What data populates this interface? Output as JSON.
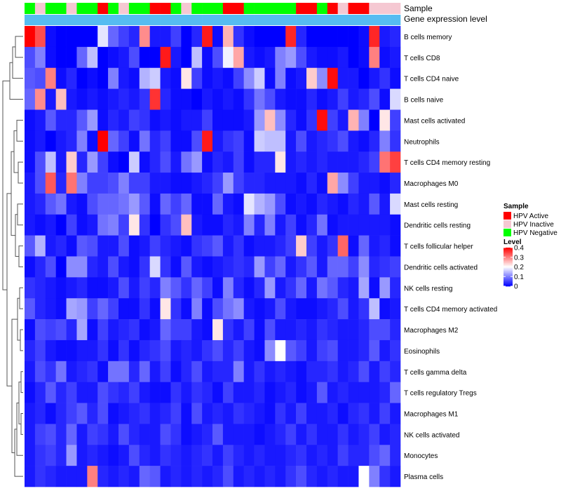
{
  "chart_data": {
    "type": "heatmap",
    "title": "",
    "annotation_tracks": [
      "Sample",
      "Gene expression level"
    ],
    "cell_types": [
      "B cells memory",
      "T cells CD8",
      "T cells CD4 naive",
      "B cells naive",
      "Mast cells activated",
      "Neutrophils",
      "T cells CD4 memory resting",
      "Macrophages M0",
      "Mast cells resting",
      "Dendritic cells resting",
      "T cells follicular helper",
      "Dendritic cells activated",
      "NK cells resting",
      "T cells CD4 memory activated",
      "Macrophages M2",
      "Eosinophils",
      "T cells gamma delta",
      "T cells regulatory  Tregs",
      "Macrophages M1",
      "NK cells activated",
      "Monocytes",
      "Plasma cells"
    ],
    "sample_groups": [
      "HPV Negative",
      "HPV Inactive",
      "HPV Negative",
      "HPV Negative",
      "HPV Inactive",
      "HPV Negative",
      "HPV Negative",
      "HPV Active",
      "HPV Negative",
      "HPV Inactive",
      "HPV Negative",
      "HPV Negative",
      "HPV Active",
      "HPV Active",
      "HPV Negative",
      "HPV Inactive",
      "HPV Negative",
      "HPV Negative",
      "HPV Negative",
      "HPV Active",
      "HPV Active",
      "HPV Negative",
      "HPV Negative",
      "HPV Negative",
      "HPV Negative",
      "HPV Negative",
      "HPV Active",
      "HPV Active",
      "HPV Negative",
      "HPV Active",
      "HPV Inactive",
      "HPV Active",
      "HPV Active",
      "HPV Inactive",
      "HPV Inactive",
      "HPV Inactive"
    ],
    "gene_expression_level": [
      0.93,
      0.93,
      0.93,
      0.93,
      0.93,
      0.93,
      0.93,
      0.93,
      0.93,
      0.93,
      0.93,
      0.93,
      0.93,
      0.93,
      0.93,
      0.93,
      0.93,
      0.93,
      0.93,
      0.93,
      0.93,
      0.93,
      0.93,
      0.93,
      0.93,
      0.93,
      0.93,
      0.93,
      0.93,
      0.93,
      0.93,
      0.93,
      0.93,
      0.93,
      0.93,
      0.93
    ],
    "values": [
      [
        0.4,
        0.34,
        0.01,
        0,
        0,
        0,
        0,
        0.18,
        0.08,
        0.05,
        0.03,
        0.29,
        0.02,
        0.02,
        0.05,
        0,
        0.03,
        0.38,
        0.01,
        0.26,
        0.04,
        0.01,
        0,
        0,
        0,
        0.37,
        0.03,
        0,
        0,
        0,
        0,
        0,
        0.01,
        0.37,
        0.02,
        0.03
      ],
      [
        0.06,
        0.1,
        0.01,
        0,
        0,
        0.08,
        0.15,
        0,
        0.01,
        0.02,
        0.06,
        0,
        0,
        0.38,
        0.02,
        0,
        0.15,
        0.01,
        0.06,
        0.19,
        0.27,
        0.02,
        0.01,
        0.02,
        0.1,
        0.12,
        0.06,
        0.02,
        0.01,
        0.01,
        0.02,
        0,
        0.01,
        0.3,
        0.01,
        0.02
      ],
      [
        0.07,
        0.06,
        0.3,
        0.01,
        0.03,
        0,
        0.01,
        0,
        0.1,
        0.02,
        0.01,
        0.14,
        0.16,
        0.02,
        0.01,
        0.22,
        0.05,
        0.01,
        0.02,
        0.01,
        0.05,
        0.11,
        0.16,
        0.01,
        0.1,
        0.01,
        0.02,
        0.24,
        0.11,
        0.39,
        0.02,
        0.02,
        0,
        0.02,
        0.04,
        0.01
      ],
      [
        0.08,
        0.29,
        0.02,
        0.25,
        0.02,
        0.01,
        0.02,
        0.01,
        0.02,
        0.03,
        0.02,
        0.04,
        0.36,
        0.03,
        0.01,
        0.01,
        0,
        0.02,
        0.01,
        0.02,
        0.01,
        0.04,
        0.09,
        0.06,
        0.02,
        0.01,
        0.01,
        0.03,
        0.01,
        0.02,
        0.05,
        0.02,
        0.03,
        0.06,
        0.01,
        0.17
      ],
      [
        0.01,
        0.02,
        0.07,
        0.03,
        0.03,
        0.07,
        0.12,
        0.01,
        0.03,
        0.02,
        0.05,
        0.04,
        0.01,
        0.02,
        0.01,
        0.02,
        0.02,
        0.05,
        0.01,
        0.01,
        0.01,
        0.02,
        0.12,
        0.25,
        0.11,
        0.03,
        0.01,
        0.04,
        0.39,
        0.05,
        0.02,
        0.26,
        0.1,
        0,
        0.22,
        0.05
      ],
      [
        0.01,
        0.02,
        0,
        0.02,
        0.03,
        0.1,
        0.01,
        0.4,
        0.08,
        0.05,
        0.01,
        0.09,
        0.03,
        0.05,
        0.01,
        0.01,
        0.06,
        0.38,
        0.02,
        0.04,
        0.05,
        0.01,
        0.16,
        0.15,
        0.15,
        0.02,
        0.06,
        0.02,
        0.03,
        0.04,
        0.06,
        0.02,
        0.01,
        0.03,
        0.1,
        0.04
      ],
      [
        0.01,
        0.06,
        0.15,
        0.02,
        0.24,
        0.03,
        0.12,
        0.05,
        0.01,
        0,
        0.16,
        0.01,
        0.03,
        0.06,
        0.02,
        0.09,
        0.12,
        0.01,
        0.03,
        0.02,
        0.05,
        0.01,
        0.03,
        0.03,
        0.22,
        0.02,
        0.03,
        0.02,
        0.03,
        0.02,
        0.02,
        0.02,
        0.03,
        0.05,
        0.31,
        0.35
      ],
      [
        0.02,
        0.06,
        0.33,
        0.03,
        0.31,
        0.1,
        0.05,
        0.05,
        0.06,
        0.1,
        0.05,
        0.05,
        0.02,
        0.02,
        0.01,
        0.01,
        0.02,
        0.03,
        0.05,
        0.12,
        0.05,
        0.03,
        0.03,
        0.02,
        0.02,
        0.02,
        0.01,
        0.03,
        0.01,
        0.27,
        0.11,
        0.05,
        0.02,
        0.02,
        0.01,
        0.03
      ],
      [
        0.02,
        0.03,
        0.07,
        0.09,
        0.02,
        0.01,
        0.06,
        0.08,
        0.08,
        0.09,
        0.12,
        0.07,
        0.01,
        0.08,
        0.05,
        0.08,
        0.01,
        0.01,
        0.08,
        0.02,
        0.01,
        0.18,
        0.14,
        0.12,
        0.06,
        0.01,
        0.02,
        0.01,
        0.03,
        0.02,
        0.01,
        0.03,
        0.02,
        0.07,
        0.02,
        0.17
      ],
      [
        0.02,
        0.01,
        0.02,
        0,
        0.05,
        0.01,
        0.02,
        0.09,
        0.1,
        0.05,
        0.22,
        0.04,
        0,
        0.04,
        0.06,
        0.25,
        0.02,
        0.01,
        0.01,
        0.03,
        0.02,
        0.1,
        0.03,
        0.1,
        0.02,
        0.05,
        0.01,
        0.03,
        0.09,
        0.01,
        0.02,
        0.02,
        0.02,
        0.02,
        0.02,
        0.01
      ],
      [
        0.07,
        0.14,
        0.02,
        0.03,
        0.01,
        0.07,
        0.06,
        0.02,
        0.02,
        0.06,
        0.01,
        0.02,
        0.05,
        0.03,
        0.02,
        0.01,
        0.04,
        0.05,
        0.07,
        0.02,
        0.04,
        0.01,
        0.02,
        0.02,
        0.03,
        0.05,
        0.24,
        0.05,
        0.02,
        0.04,
        0.32,
        0.01,
        0.08,
        0.02,
        0.03,
        0.01
      ],
      [
        0.01,
        0.03,
        0.06,
        0,
        0.11,
        0.11,
        0.03,
        0.02,
        0.06,
        0.02,
        0.01,
        0.04,
        0.17,
        0.04,
        0.01,
        0.07,
        0.02,
        0.01,
        0.02,
        0.03,
        0.04,
        0.03,
        0.12,
        0.05,
        0.08,
        0.02,
        0.04,
        0.07,
        0.02,
        0.08,
        0.08,
        0.05,
        0.11,
        0.03,
        0.04,
        0.05
      ],
      [
        0.04,
        0.03,
        0.02,
        0.01,
        0.02,
        0.03,
        0.01,
        0.01,
        0.02,
        0.06,
        0.02,
        0.05,
        0.03,
        0.1,
        0.07,
        0.04,
        0.08,
        0.05,
        0.01,
        0.1,
        0.03,
        0.01,
        0.03,
        0.12,
        0.02,
        0.04,
        0.08,
        0.02,
        0.09,
        0.07,
        0.03,
        0.02,
        0.13,
        0.01,
        0.12,
        0.03
      ],
      [
        0.07,
        0.03,
        0.02,
        0.01,
        0.13,
        0.12,
        0.05,
        0.08,
        0.05,
        0.01,
        0.01,
        0.04,
        0.01,
        0.22,
        0.04,
        0.01,
        0.1,
        0.01,
        0.06,
        0.09,
        0.11,
        0.02,
        0.01,
        0.02,
        0.06,
        0.02,
        0.01,
        0.01,
        0.02,
        0.03,
        0.06,
        0.02,
        0.04,
        0.15,
        0.01,
        0.02
      ],
      [
        0.01,
        0.06,
        0.05,
        0.06,
        0.03,
        0.13,
        0.01,
        0.05,
        0.02,
        0.03,
        0.04,
        0.01,
        0.02,
        0.08,
        0.05,
        0.05,
        0.02,
        0.01,
        0.22,
        0.04,
        0.02,
        0.05,
        0.01,
        0.06,
        0.02,
        0.02,
        0.03,
        0.02,
        0.04,
        0.03,
        0.02,
        0.02,
        0.03,
        0.06,
        0.06,
        0.03
      ],
      [
        0.03,
        0.05,
        0.02,
        0.01,
        0.01,
        0.02,
        0.02,
        0.04,
        0.01,
        0.04,
        0.01,
        0.03,
        0.04,
        0.06,
        0.02,
        0.03,
        0.02,
        0.04,
        0.06,
        0.03,
        0.05,
        0.02,
        0.01,
        0.11,
        0.2,
        0.07,
        0.05,
        0.02,
        0.05,
        0.06,
        0.02,
        0.02,
        0.03,
        0.07,
        0.02,
        0.04
      ],
      [
        0.02,
        0.06,
        0.04,
        0.09,
        0.02,
        0.03,
        0.04,
        0.01,
        0.09,
        0.09,
        0.03,
        0.08,
        0.02,
        0.05,
        0.01,
        0.03,
        0.06,
        0.02,
        0.03,
        0.03,
        0.1,
        0.02,
        0.04,
        0.02,
        0.03,
        0.02,
        0.01,
        0.03,
        0.03,
        0.04,
        0.02,
        0.03,
        0.06,
        0.02,
        0.05,
        0.03
      ],
      [
        0.01,
        0.03,
        0.07,
        0.03,
        0.05,
        0.02,
        0.02,
        0.06,
        0.04,
        0.03,
        0.05,
        0.02,
        0.01,
        0.01,
        0.04,
        0.02,
        0.04,
        0.03,
        0.01,
        0.05,
        0.02,
        0.02,
        0.03,
        0.01,
        0.02,
        0.03,
        0.01,
        0.02,
        0.07,
        0.02,
        0.03,
        0.02,
        0.02,
        0.02,
        0.03,
        0.08
      ],
      [
        0.02,
        0.03,
        0.01,
        0.03,
        0.05,
        0.07,
        0.03,
        0.06,
        0.01,
        0.02,
        0.03,
        0.04,
        0.02,
        0.03,
        0.05,
        0.01,
        0.06,
        0.02,
        0.03,
        0.02,
        0.04,
        0.03,
        0.02,
        0.01,
        0.04,
        0.02,
        0.05,
        0.02,
        0.02,
        0.03,
        0.01,
        0.03,
        0.04,
        0.02,
        0.05,
        0.02
      ],
      [
        0.02,
        0.05,
        0.06,
        0.03,
        0.08,
        0.02,
        0.05,
        0.04,
        0.02,
        0.06,
        0.03,
        0.02,
        0.02,
        0.06,
        0.04,
        0.01,
        0.02,
        0.03,
        0.07,
        0.02,
        0.02,
        0.02,
        0.01,
        0.02,
        0.03,
        0.05,
        0.02,
        0.04,
        0.02,
        0.02,
        0.04,
        0.02,
        0.03,
        0.05,
        0.02,
        0.03
      ],
      [
        0.02,
        0.04,
        0.05,
        0.03,
        0.12,
        0.02,
        0.03,
        0.02,
        0.01,
        0.02,
        0.06,
        0.03,
        0.02,
        0.04,
        0.03,
        0.02,
        0.03,
        0.04,
        0.02,
        0.05,
        0.03,
        0.02,
        0.03,
        0.02,
        0.02,
        0.03,
        0.04,
        0.02,
        0.03,
        0.02,
        0.05,
        0.03,
        0.03,
        0.06,
        0.08,
        0.03
      ],
      [
        0.02,
        0.04,
        0.03,
        0.02,
        0.02,
        0.02,
        0.3,
        0.03,
        0.02,
        0.03,
        0.02,
        0.08,
        0.07,
        0.02,
        0.03,
        0.02,
        0.03,
        0.02,
        0.03,
        0.06,
        0.02,
        0.03,
        0.02,
        0.03,
        0.02,
        0.04,
        0.06,
        0.03,
        0.02,
        0.03,
        0.02,
        0.02,
        0.2,
        0.1,
        0.04,
        0.02
      ]
    ],
    "sample_legend": {
      "title": "Sample",
      "entries": [
        {
          "label": "HPV Active",
          "color": "#ff0000"
        },
        {
          "label": "HPV Inactive",
          "color": "#f5c8d2"
        },
        {
          "label": "HPV Negative",
          "color": "#00ff00"
        }
      ]
    },
    "level_legend": {
      "title": "Level",
      "ticks": [
        0.4,
        0.3,
        0.2,
        0.1,
        0
      ],
      "tick_labels": [
        "0.4",
        "0.3",
        "0.2",
        "0.1",
        "0"
      ],
      "range": [
        0,
        0.4
      ]
    },
    "colors": {
      "low": "#0000ff",
      "mid": "#ffffff",
      "high": "#ff0000",
      "expression_track": "#4db8f0",
      "expression_track_light": "#cfeefc",
      "dendrogram": "#555555"
    },
    "legend_position": "right",
    "grid": false
  }
}
